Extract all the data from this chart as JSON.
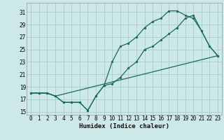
{
  "xlabel": "Humidex (Indice chaleur)",
  "bg_color": "#cce8e8",
  "grid_color": "#aacccc",
  "line_color": "#1a6b5a",
  "line1_x": [
    0,
    1,
    2,
    3,
    4,
    5,
    6,
    7,
    8,
    9,
    10,
    11,
    12,
    13,
    14,
    15,
    16,
    17,
    18,
    19,
    20,
    21,
    22,
    23
  ],
  "line1_y": [
    18,
    18,
    18,
    17.5,
    16.5,
    16.5,
    16.5,
    15.2,
    17.5,
    19.2,
    23,
    25.5,
    26,
    27,
    28.5,
    29.5,
    30,
    31.2,
    31.2,
    30.5,
    30,
    28,
    25.5,
    24
  ],
  "line2_x": [
    0,
    1,
    2,
    3,
    4,
    5,
    6,
    7,
    8,
    9,
    10,
    11,
    12,
    13,
    14,
    15,
    16,
    17,
    18,
    19,
    20,
    21,
    22,
    23
  ],
  "line2_y": [
    18,
    18,
    18,
    17.5,
    16.5,
    16.5,
    16.5,
    15.2,
    17.5,
    19.2,
    19.5,
    20.5,
    22,
    23,
    25,
    25.5,
    26.5,
    27.5,
    28.5,
    30,
    30.5,
    28,
    25.5,
    24
  ],
  "line3_x": [
    0,
    1,
    2,
    3,
    23
  ],
  "line3_y": [
    18,
    18,
    18,
    17.5,
    24
  ],
  "ylim": [
    14.5,
    32.5
  ],
  "xlim": [
    -0.5,
    23.5
  ],
  "yticks": [
    15,
    17,
    19,
    21,
    23,
    25,
    27,
    29,
    31
  ],
  "xticks": [
    0,
    1,
    2,
    3,
    4,
    5,
    6,
    7,
    8,
    9,
    10,
    11,
    12,
    13,
    14,
    15,
    16,
    17,
    18,
    19,
    20,
    21,
    22,
    23
  ],
  "tick_fontsize": 5.5,
  "xlabel_fontsize": 6.5
}
